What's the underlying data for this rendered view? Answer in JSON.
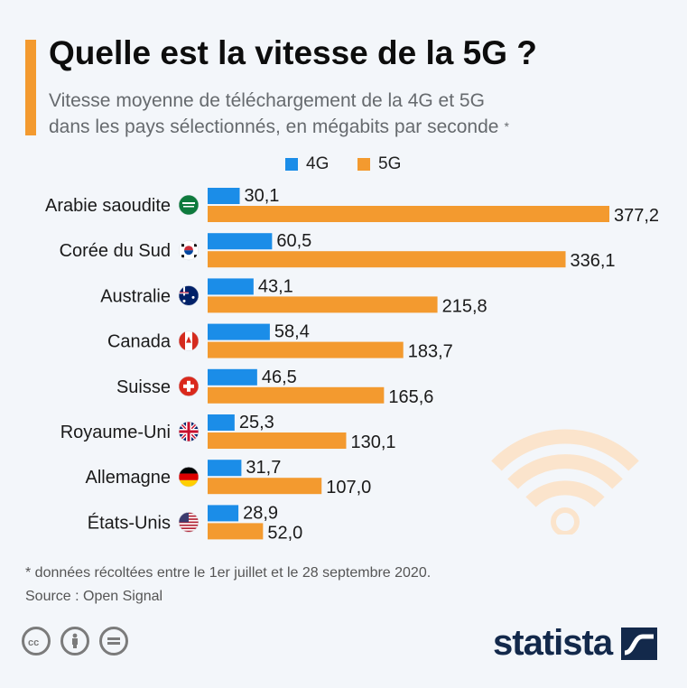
{
  "header": {
    "title": "Quelle est la vitesse de la 5G ?",
    "subtitle_line1": "Vitesse moyenne de téléchargement de la 4G et 5G",
    "subtitle_line2": "dans les pays sélectionnés, en mégabits par seconde",
    "subtitle_marker": "*"
  },
  "legend": [
    {
      "label": "4G",
      "color": "#1b8de8"
    },
    {
      "label": "5G",
      "color": "#f39a2f"
    }
  ],
  "chart_data": {
    "type": "bar",
    "orientation": "horizontal",
    "categories": [
      "Arabie saoudite",
      "Corée du Sud",
      "Australie",
      "Canada",
      "Suisse",
      "Royaume-Uni",
      "Allemagne",
      "États-Unis"
    ],
    "series": [
      {
        "name": "4G",
        "color": "#1b8de8",
        "values": [
          30.1,
          60.5,
          43.1,
          58.4,
          46.5,
          25.3,
          31.7,
          28.9
        ],
        "labels": [
          "30,1",
          "60,5",
          "43,1",
          "58,4",
          "46,5",
          "25,3",
          "31,7",
          "28,9"
        ]
      },
      {
        "name": "5G",
        "color": "#f39a2f",
        "values": [
          377.2,
          336.1,
          215.8,
          183.7,
          165.6,
          130.1,
          107.0,
          52.0
        ],
        "labels": [
          "377,2",
          "336,1",
          "215,8",
          "183,7",
          "165,6",
          "130,1",
          "107,0",
          "52,0"
        ]
      }
    ],
    "flags": [
      "flag-saudi-arabia-icon",
      "flag-south-korea-icon",
      "flag-australia-icon",
      "flag-canada-icon",
      "flag-switzerland-icon",
      "flag-uk-icon",
      "flag-germany-icon",
      "flag-usa-icon"
    ],
    "xlim": [
      0,
      377.2
    ],
    "grid": false,
    "legend_position": "top"
  },
  "footer": {
    "note": "* données récoltées entre le 1er juillet et le 28 septembre 2020.",
    "source": "Source : Open Signal",
    "brand": "statista",
    "license_icons": [
      "cc-icon",
      "by-icon",
      "nd-icon"
    ]
  }
}
